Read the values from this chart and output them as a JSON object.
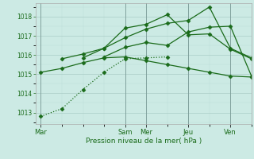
{
  "bg_color": "#cceae4",
  "grid_color_major": "#aaccc6",
  "grid_color_minor": "#bbddd8",
  "line_color": "#1a6b1a",
  "xlabel": "Pression niveau de la mer( hPa )",
  "ylim": [
    1012.4,
    1018.7
  ],
  "yticks": [
    1013,
    1014,
    1015,
    1016,
    1017,
    1018
  ],
  "x_day_labels": [
    "Mar",
    "Sam",
    "Mer",
    "Jeu",
    "Ven"
  ],
  "x_day_positions": [
    0,
    8,
    10,
    14,
    18
  ],
  "xlim": [
    -0.5,
    20
  ],
  "series": [
    {
      "x": [
        0,
        2,
        4,
        6,
        8,
        10,
        12
      ],
      "y": [
        1012.8,
        1013.2,
        1014.2,
        1015.1,
        1015.8,
        1015.85,
        1015.9
      ],
      "linestyle": "dotted"
    },
    {
      "x": [
        0,
        2,
        4,
        6,
        8,
        10,
        12,
        14,
        16,
        18,
        20
      ],
      "y": [
        1015.1,
        1015.3,
        1015.6,
        1015.85,
        1015.9,
        1015.7,
        1015.5,
        1015.3,
        1015.1,
        1014.9,
        1014.85
      ],
      "linestyle": "solid"
    },
    {
      "x": [
        2,
        4,
        6,
        8,
        10,
        12,
        14,
        16,
        18,
        20
      ],
      "y": [
        1015.8,
        1016.05,
        1016.35,
        1017.4,
        1017.6,
        1018.1,
        1017.05,
        1017.1,
        1016.3,
        1015.8
      ],
      "linestyle": "solid"
    },
    {
      "x": [
        4,
        6,
        8,
        10,
        12,
        14,
        16,
        18,
        20
      ],
      "y": [
        1015.85,
        1016.35,
        1016.9,
        1017.35,
        1017.65,
        1017.8,
        1018.5,
        1016.35,
        1015.85
      ],
      "linestyle": "solid"
    },
    {
      "x": [
        6,
        8,
        10,
        12,
        14,
        16,
        18,
        20
      ],
      "y": [
        1015.9,
        1016.4,
        1016.65,
        1016.5,
        1017.2,
        1017.45,
        1017.5,
        1014.9
      ],
      "linestyle": "solid"
    }
  ],
  "marker": "D",
  "markersize": 2.5,
  "linewidth": 0.9
}
